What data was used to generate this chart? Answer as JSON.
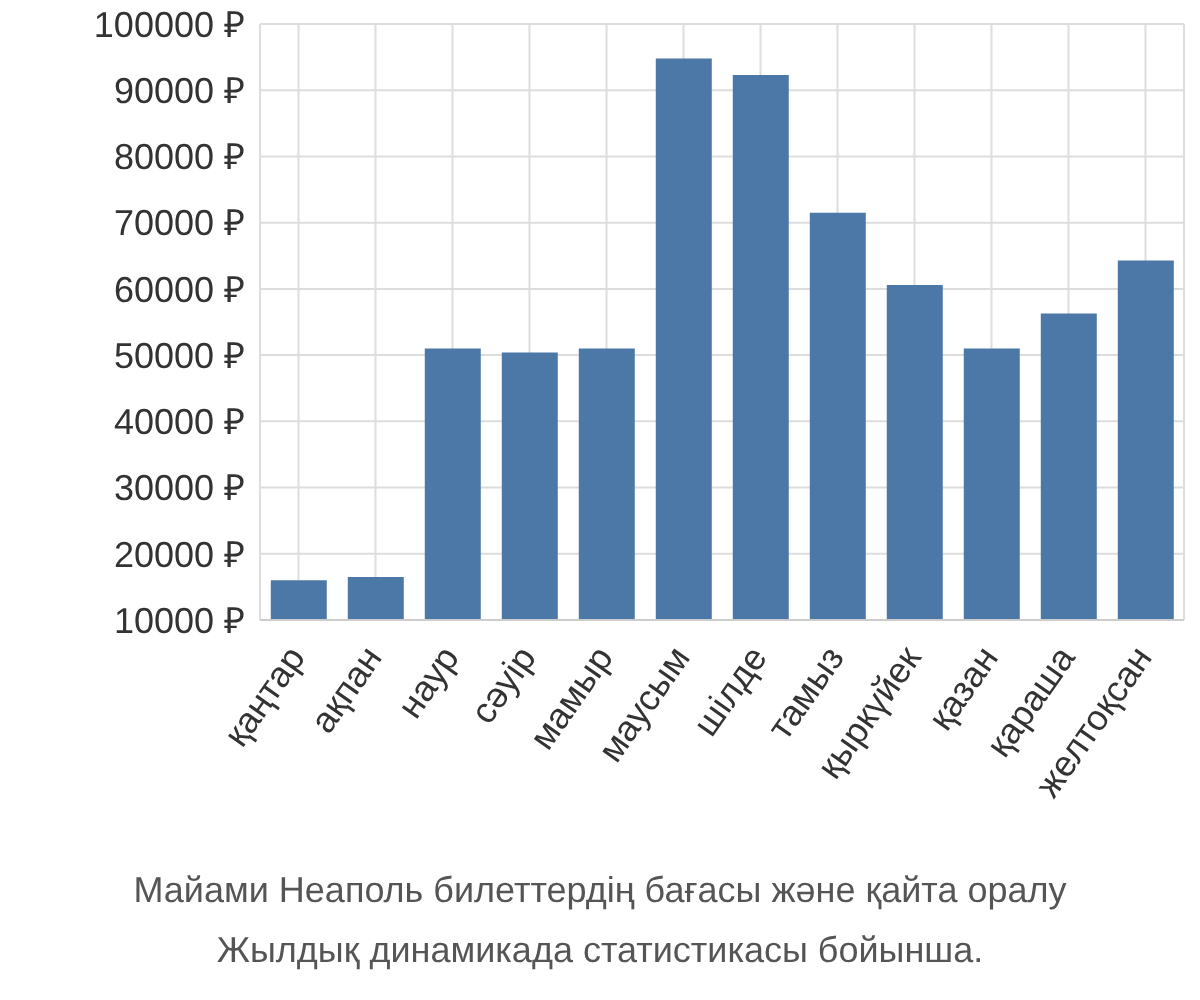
{
  "chart_data": {
    "type": "bar",
    "categories": [
      "қаңтар",
      "ақпан",
      "наур",
      "сәуір",
      "мамыр",
      "маусым",
      "шілде",
      "тамыз",
      "қыркүйек",
      "қазан",
      "қараша",
      "желтоқсан"
    ],
    "values": [
      16000,
      16500,
      51000,
      50400,
      51000,
      94800,
      92300,
      71500,
      60600,
      51000,
      56300,
      64300
    ],
    "color": "#4c78a8",
    "ylim": [
      10000,
      100000
    ],
    "yticks": [
      {
        "value": 10000,
        "label": "10000 ₽"
      },
      {
        "value": 20000,
        "label": "20000 ₽"
      },
      {
        "value": 30000,
        "label": "30000 ₽"
      },
      {
        "value": 40000,
        "label": "40000 ₽"
      },
      {
        "value": 50000,
        "label": "50000 ₽"
      },
      {
        "value": 60000,
        "label": "60000 ₽"
      },
      {
        "value": 70000,
        "label": "70000 ₽"
      },
      {
        "value": 80000,
        "label": "80000 ₽"
      },
      {
        "value": 90000,
        "label": "90000 ₽"
      },
      {
        "value": 100000,
        "label": "100000 ₽"
      }
    ],
    "grid": true,
    "annotations": [
      "Майами Неаполь билеттердің бағасы және қайта оралу",
      "Жылдық динамикада статистикасы бойынша."
    ]
  }
}
